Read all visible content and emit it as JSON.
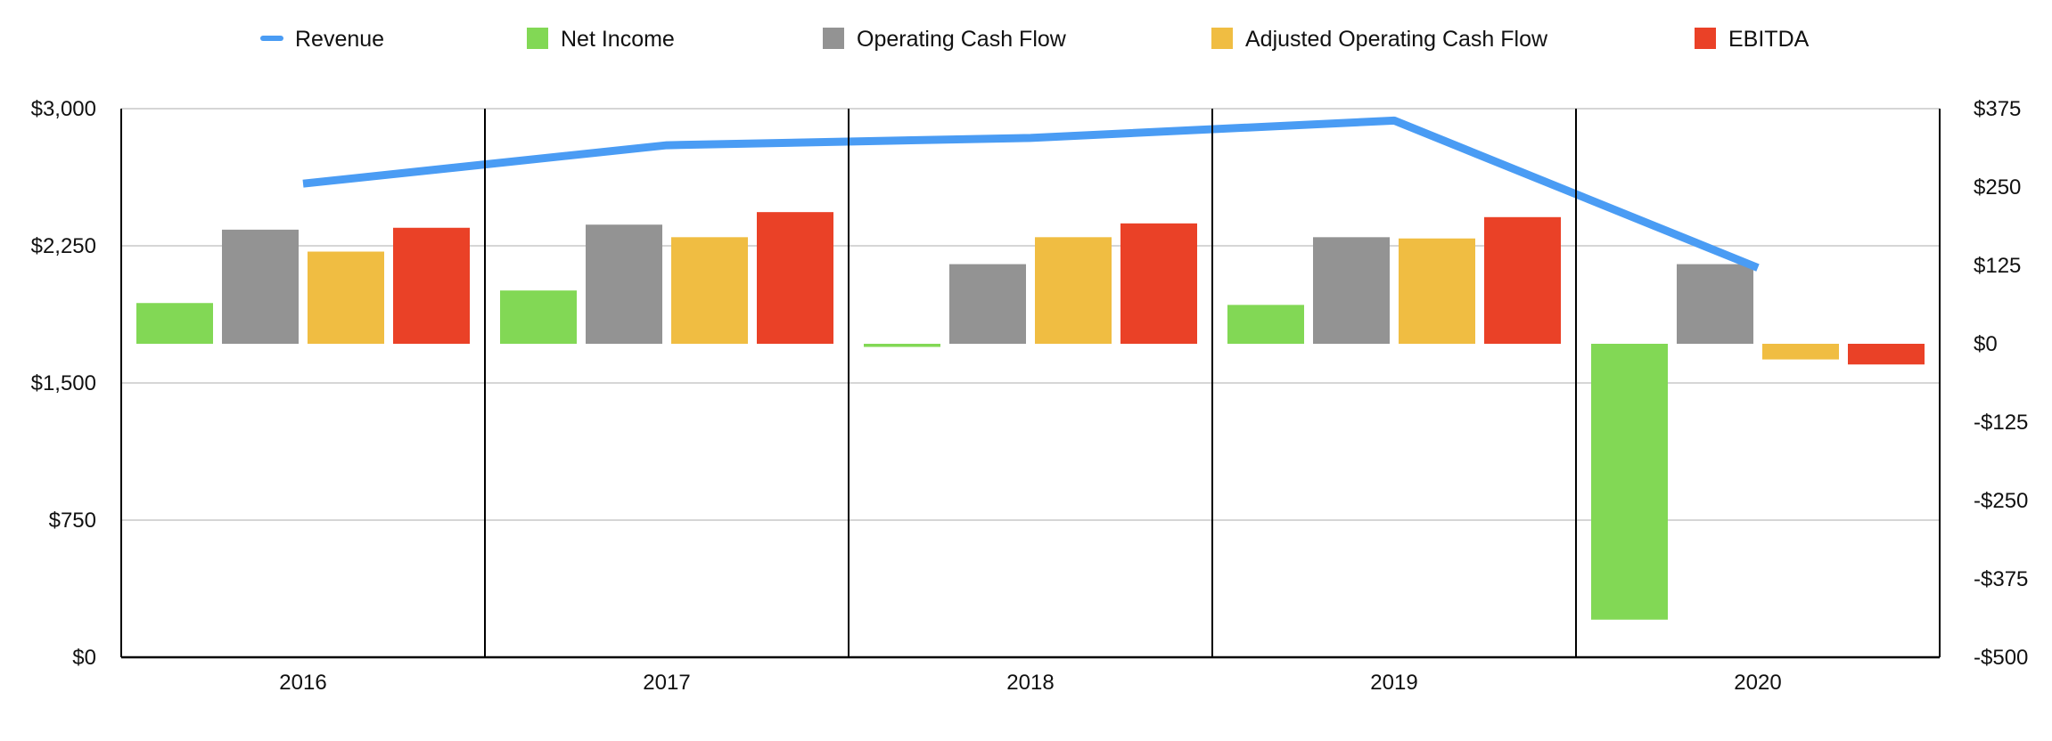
{
  "chart_data": {
    "type": "bar",
    "categories": [
      "2016",
      "2017",
      "2018",
      "2019",
      "2020"
    ],
    "left_axis": {
      "ticks": [
        0,
        750,
        1500,
        2250,
        3000
      ],
      "tick_labels": [
        "$0",
        "$750",
        "$1,500",
        "$2,250",
        "$3,000"
      ],
      "range": [
        0,
        3000
      ]
    },
    "right_axis": {
      "ticks": [
        -500,
        -375,
        -250,
        -125,
        0,
        125,
        250,
        375
      ],
      "tick_labels": [
        "-$500",
        "-$375",
        "-$250",
        "-$125",
        "$0",
        "$125",
        "$250",
        "$375"
      ],
      "range": [
        -500,
        375
      ]
    },
    "series": [
      {
        "name": "Revenue",
        "kind": "line",
        "axis": "left",
        "color": "#4a9cf4",
        "values": [
          2590,
          2800,
          2840,
          2935,
          2130
        ]
      },
      {
        "name": "Net Income",
        "kind": "bar",
        "axis": "right",
        "color": "#82d855",
        "values": [
          65,
          85,
          -5,
          62,
          -440
        ]
      },
      {
        "name": "Operating Cash Flow",
        "kind": "bar",
        "axis": "right",
        "color": "#939393",
        "values": [
          182,
          190,
          127,
          170,
          127
        ]
      },
      {
        "name": "Adjusted Operating Cash Flow",
        "kind": "bar",
        "axis": "right",
        "color": "#f0bd42",
        "values": [
          147,
          170,
          170,
          168,
          -25
        ]
      },
      {
        "name": "EBITDA",
        "kind": "bar",
        "axis": "right",
        "color": "#ea4127",
        "values": [
          185,
          210,
          192,
          202,
          -33
        ]
      }
    ],
    "grid": true,
    "legend_position": "top"
  }
}
